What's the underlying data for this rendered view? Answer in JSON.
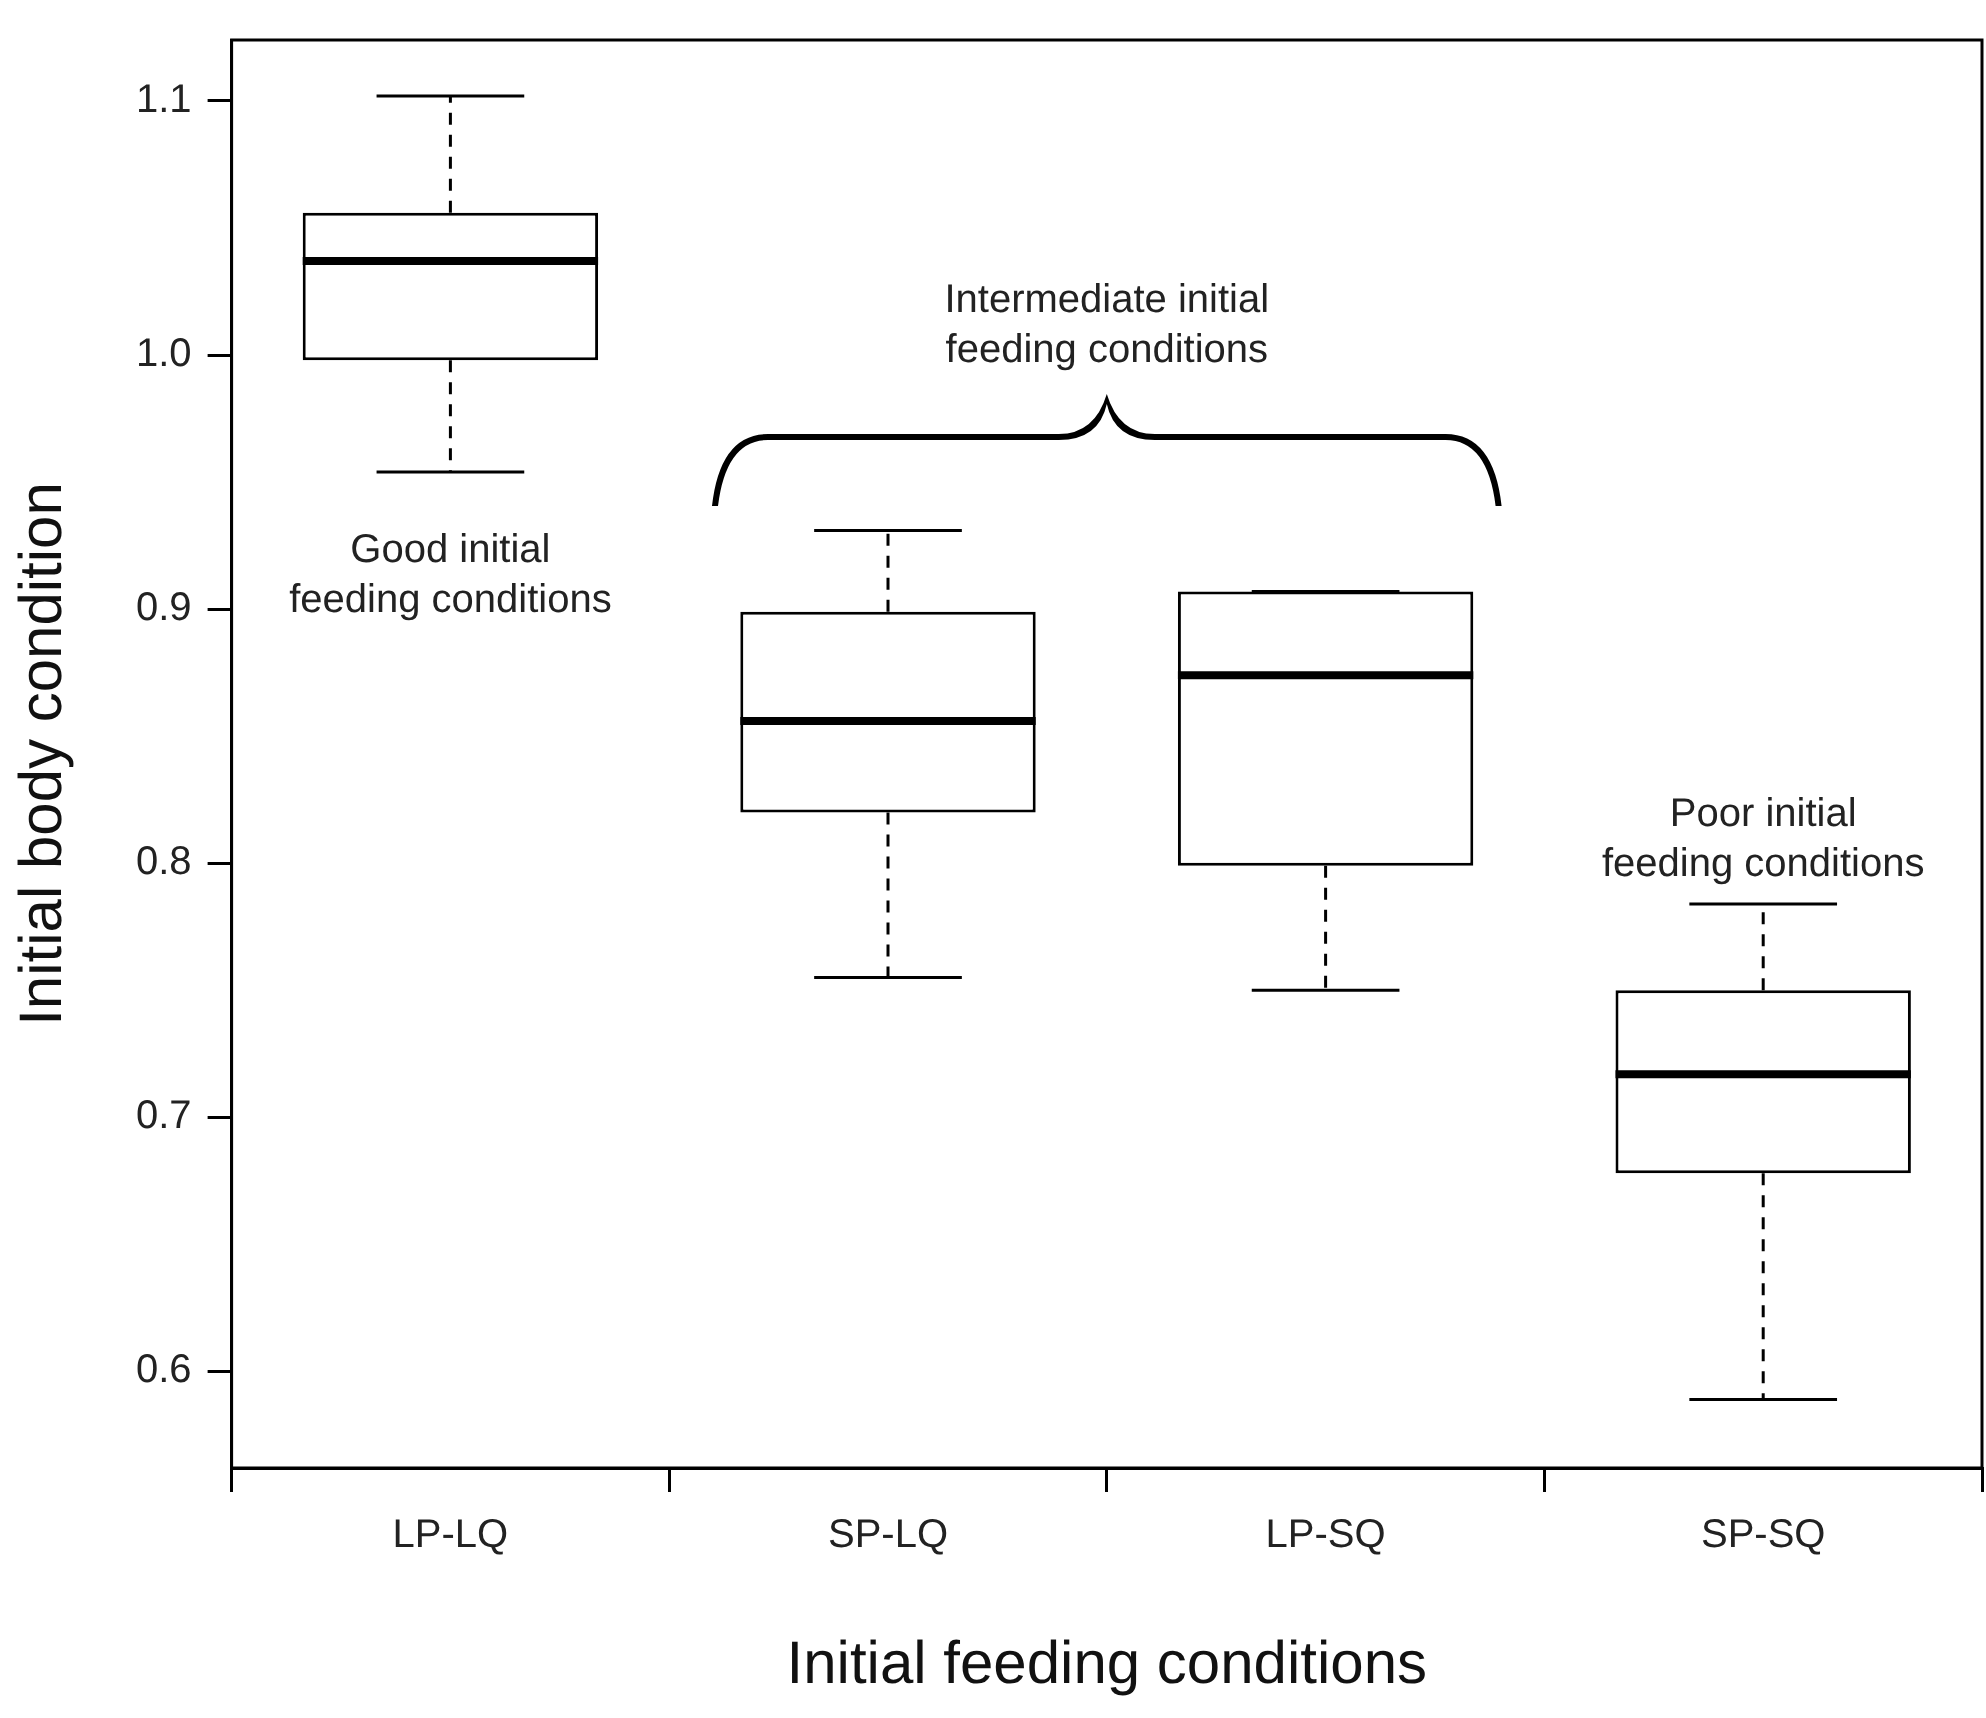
{
  "chart_data": {
    "type": "box",
    "xlabel": "Initial feeding conditions",
    "ylabel": "Initial body condition",
    "categories": [
      "LP-LQ",
      "SP-LQ",
      "LP-SQ",
      "SP-SQ"
    ],
    "boxes": [
      {
        "low": 0.954,
        "q1": 0.998,
        "median": 1.037,
        "q3": 1.056,
        "high": 1.102
      },
      {
        "low": 0.755,
        "q1": 0.82,
        "median": 0.856,
        "q3": 0.899,
        "high": 0.931
      },
      {
        "low": 0.75,
        "q1": 0.799,
        "median": 0.874,
        "q3": 0.907,
        "high": 0.907
      },
      {
        "low": 0.589,
        "q1": 0.678,
        "median": 0.717,
        "q3": 0.75,
        "high": 0.784
      }
    ],
    "ylim": [
      0.562,
      1.124
    ],
    "yticks": [
      {
        "value": 0.6,
        "label": "0.6"
      },
      {
        "value": 0.7,
        "label": "0.7"
      },
      {
        "value": 0.8,
        "label": "0.8"
      },
      {
        "value": 0.9,
        "label": "0.9"
      },
      {
        "value": 1.0,
        "label": "1.0"
      },
      {
        "value": 1.1,
        "label": "1.1"
      }
    ],
    "grid": false,
    "annotations": [
      "Good initial\nfeeding conditions",
      "Intermediate initial\nfeeding conditions",
      "Poor initial\nfeeding conditions"
    ]
  }
}
